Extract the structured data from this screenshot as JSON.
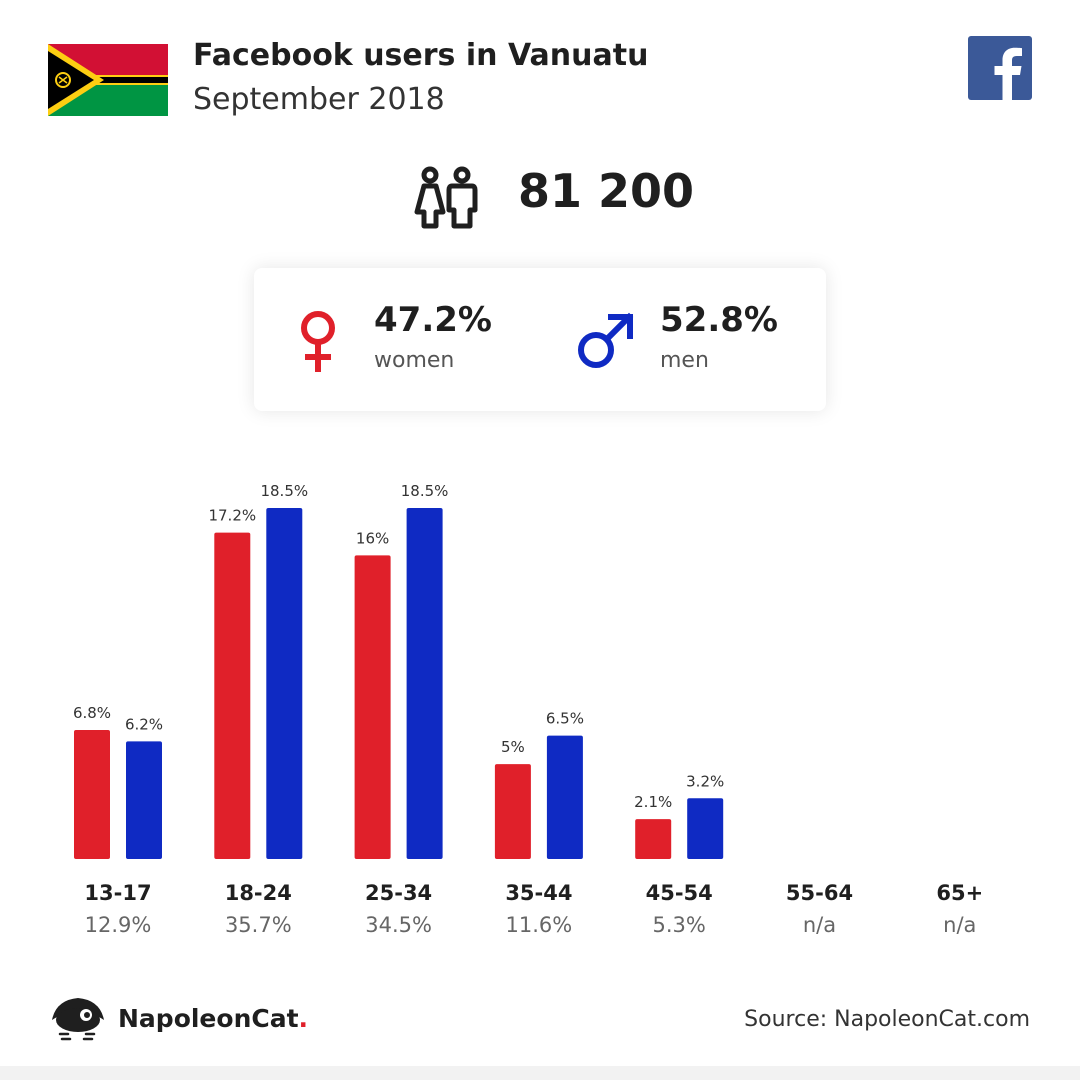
{
  "header": {
    "title": "Facebook users in Vanuatu",
    "subtitle": "September 2018",
    "total_users": "81 200"
  },
  "icons": {
    "flag": "vanuatu-flag-icon",
    "facebook": "facebook-icon",
    "people": "people-icon",
    "female": "female-symbol-icon",
    "male": "male-symbol-icon",
    "logo": "napoleoncat-logo-icon"
  },
  "gender": {
    "women": {
      "percent": "47.2%",
      "label": "women"
    },
    "men": {
      "percent": "52.8%",
      "label": "men"
    }
  },
  "colors": {
    "women": "#e0202a",
    "men": "#0f2ac3",
    "facebook": "#3b5998"
  },
  "chart_data": {
    "type": "bar",
    "categories": [
      "13-17",
      "18-24",
      "25-34",
      "35-44",
      "45-54",
      "55-64",
      "65+"
    ],
    "category_totals": [
      "12.9%",
      "35.7%",
      "34.5%",
      "11.6%",
      "5.3%",
      "n/a",
      "n/a"
    ],
    "series": [
      {
        "color": "#e0202a",
        "values": [
          6.8,
          17.2,
          16,
          5,
          2.1,
          null,
          null
        ],
        "labels": [
          "6.8%",
          "17.2%",
          "16%",
          "5%",
          "2.1%",
          "",
          ""
        ]
      },
      {
        "color": "#0f2ac3",
        "values": [
          6.2,
          18.5,
          18.5,
          6.5,
          3.2,
          null,
          null
        ],
        "labels": [
          "6.2%",
          "18.5%",
          "18.5%",
          "6.5%",
          "3.2%",
          "",
          ""
        ]
      }
    ],
    "ylim": [
      0,
      18.5
    ],
    "grid": false,
    "legend": "none"
  },
  "footer": {
    "brand_name": "NapoleonCat",
    "brand_dot": ".",
    "source": "Source: NapoleonCat.com"
  }
}
